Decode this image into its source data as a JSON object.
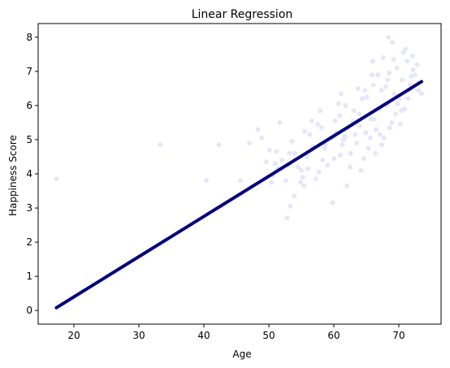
{
  "chart_data": {
    "type": "scatter",
    "title": "Linear Regression",
    "xlabel": "Age",
    "ylabel": "Happiness Score",
    "xlim": [
      14.5,
      76.5
    ],
    "ylim": [
      -0.4,
      8.4
    ],
    "xticks": [
      20,
      30,
      40,
      50,
      60,
      70
    ],
    "yticks": [
      0,
      1,
      2,
      3,
      4,
      5,
      6,
      7,
      8
    ],
    "xtick_labels": [
      "20",
      "30",
      "40",
      "50",
      "60",
      "70"
    ],
    "ytick_labels": [
      "0",
      "1",
      "2",
      "3",
      "4",
      "5",
      "6",
      "7",
      "8"
    ],
    "grid": false,
    "colors": {
      "points": "#e6e6fa",
      "line": "#000080"
    },
    "series": [
      {
        "kind": "scatter",
        "x": [
          17.3,
          33.3,
          42.3,
          40.4,
          45.6,
          47.0,
          48.3,
          48.9,
          49.6,
          50.1,
          50.6,
          51.0,
          51.4,
          52.0,
          52.6,
          53.0,
          53.3,
          53.6,
          54.0,
          54.5,
          55.0,
          55.4,
          55.9,
          56.3,
          56.8,
          57.2,
          57.7,
          58.1,
          58.6,
          59.0,
          59.5,
          60.0,
          60.4,
          60.9,
          61.3,
          61.7,
          62.2,
          62.6,
          63.1,
          63.5,
          64.0,
          64.4,
          64.9,
          65.3,
          65.7,
          66.1,
          66.5,
          66.9,
          67.3,
          67.7,
          68.1,
          68.5,
          68.9,
          69.3,
          69.7,
          70.1,
          70.5,
          70.9,
          71.3,
          71.7,
          72.1,
          72.5,
          73.0,
          73.5,
          52.8,
          53.2,
          54.9,
          55.5,
          56.0,
          57.5,
          58.7,
          59.8,
          60.2,
          61.0,
          61.8,
          62.5,
          63.3,
          63.9,
          64.6,
          65.1,
          65.6,
          66.2,
          66.8,
          67.4,
          68.0,
          68.6,
          69.2,
          69.8,
          70.4,
          71.0,
          71.6,
          72.2,
          50.4,
          51.7,
          53.9,
          56.6,
          58.3,
          60.7,
          62.9,
          64.2,
          65.9,
          67.1,
          68.3,
          69.5,
          70.7,
          71.9,
          51.2,
          55.2,
          57.9,
          61.5,
          63.7,
          66.4,
          69.0,
          71.4,
          62.0,
          64.8,
          67.6,
          70.2,
          72.8,
          68.4,
          66.0,
          61.1
        ],
        "y": [
          3.85,
          4.85,
          4.85,
          3.8,
          3.8,
          4.9,
          5.3,
          5.05,
          4.35,
          4.7,
          3.95,
          4.3,
          4.15,
          4.4,
          3.8,
          4.25,
          3.05,
          4.95,
          4.6,
          4.2,
          4.1,
          3.65,
          4.5,
          5.15,
          4.8,
          3.85,
          4.05,
          5.35,
          4.75,
          4.25,
          5.05,
          4.45,
          5.2,
          5.7,
          4.85,
          5.1,
          5.35,
          4.6,
          5.85,
          4.9,
          5.4,
          6.2,
          5.2,
          4.75,
          5.6,
          6.6,
          5.3,
          5.9,
          6.45,
          5.05,
          6.0,
          6.95,
          5.5,
          6.35,
          7.1,
          6.2,
          6.75,
          5.9,
          7.3,
          6.6,
          7.45,
          6.9,
          6.45,
          6.35,
          2.7,
          4.6,
          3.75,
          5.25,
          4.15,
          5.45,
          4.85,
          3.15,
          5.55,
          4.55,
          6.0,
          4.2,
          5.15,
          5.75,
          4.45,
          6.25,
          5.05,
          5.6,
          6.9,
          4.85,
          6.55,
          5.35,
          7.35,
          6.05,
          5.85,
          7.65,
          6.45,
          7.05,
          3.75,
          5.5,
          3.35,
          5.55,
          4.4,
          6.05,
          5.55,
          4.1,
          6.9,
          5.15,
          6.75,
          5.75,
          7.55,
          6.85,
          4.65,
          3.9,
          5.85,
          5.0,
          6.5,
          4.6,
          7.85,
          6.2,
          3.65,
          6.45,
          7.4,
          5.45,
          7.2,
          8.0,
          7.3,
          6.35
        ]
      },
      {
        "kind": "line",
        "x": [
          17.3,
          73.5
        ],
        "y": [
          0.08,
          6.7
        ]
      }
    ]
  }
}
